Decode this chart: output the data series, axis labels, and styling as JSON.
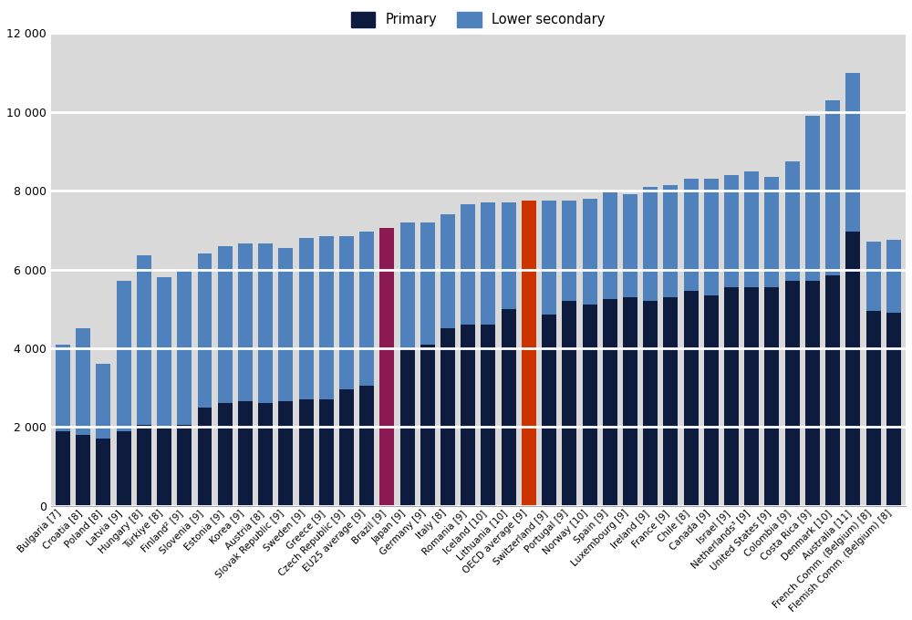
{
  "countries": [
    "Bulgaria [7]",
    "Croatia [8]",
    "Poland [8]",
    "Latvia [9]",
    "Hungary [8]",
    "Türkiye [8]",
    "Finland² [9]",
    "Slovenia [9]",
    "Estonia [9]",
    "Korea [9]",
    "Austria [8]",
    "Slovak Republic [9]",
    "Sweden [9]",
    "Greece [9]",
    "Czech Republic [9]",
    "EU25 average [9]",
    "Brazil [9]",
    "Japan [9]",
    "Germany [9]",
    "Italy [8]",
    "Romania [9]",
    "Iceland [10]",
    "Lithuania [10]",
    "OECD average [9]",
    "Switzerland [9]",
    "Portugal [9]",
    "Norway [10]",
    "Spain [9]",
    "Luxembourg [9]",
    "Ireland [9]",
    "France [9]",
    "Chile [8]",
    "Canada [9]",
    "Israel [9]",
    "Netherlands³ [9]",
    "United States [9]",
    "Colombia [9]",
    "Costa Rica [9]",
    "Denmark [10]",
    "Australia [11]",
    "French Comm. (Belgium) [8]",
    "Flemish Comm. (Belgium) [8]"
  ],
  "primary": [
    1900,
    1800,
    1700,
    1900,
    2050,
    2000,
    2050,
    2500,
    2600,
    2650,
    2600,
    2650,
    2700,
    2700,
    2950,
    3050,
    4050,
    4000,
    4100,
    4500,
    4600,
    4600,
    5000,
    5000,
    4850,
    5200,
    5100,
    5250,
    5300,
    5200,
    5300,
    5450,
    5350,
    5550,
    5550,
    5550,
    5700,
    5700,
    5850,
    6950,
    4950,
    4900
  ],
  "lower_secondary": [
    2200,
    2700,
    1900,
    3800,
    4300,
    3800,
    3950,
    3900,
    4000,
    4000,
    4050,
    3900,
    4100,
    4150,
    3900,
    3900,
    3000,
    3200,
    3100,
    2900,
    3050,
    3100,
    2700,
    2750,
    2900,
    2550,
    2700,
    2700,
    2600,
    2900,
    2850,
    2850,
    2950,
    2850,
    2950,
    2800,
    3050,
    4200,
    4450,
    4050,
    1750,
    1850
  ],
  "bar_colors_primary": [
    "#0d1b3e",
    "#0d1b3e",
    "#0d1b3e",
    "#0d1b3e",
    "#0d1b3e",
    "#0d1b3e",
    "#0d1b3e",
    "#0d1b3e",
    "#0d1b3e",
    "#0d1b3e",
    "#0d1b3e",
    "#0d1b3e",
    "#0d1b3e",
    "#0d1b3e",
    "#0d1b3e",
    "#0d1b3e",
    "#8b1a52",
    "#0d1b3e",
    "#0d1b3e",
    "#0d1b3e",
    "#0d1b3e",
    "#0d1b3e",
    "#0d1b3e",
    "#cc3300",
    "#0d1b3e",
    "#0d1b3e",
    "#0d1b3e",
    "#0d1b3e",
    "#0d1b3e",
    "#0d1b3e",
    "#0d1b3e",
    "#0d1b3e",
    "#0d1b3e",
    "#0d1b3e",
    "#0d1b3e",
    "#0d1b3e",
    "#0d1b3e",
    "#0d1b3e",
    "#0d1b3e",
    "#0d1b3e",
    "#0d1b3e",
    "#0d1b3e"
  ],
  "bar_colors_secondary": [
    "#4f81bd",
    "#4f81bd",
    "#4f81bd",
    "#4f81bd",
    "#4f81bd",
    "#4f81bd",
    "#4f81bd",
    "#4f81bd",
    "#4f81bd",
    "#4f81bd",
    "#4f81bd",
    "#4f81bd",
    "#4f81bd",
    "#4f81bd",
    "#4f81bd",
    "#4f81bd",
    "#8b1a52",
    "#4f81bd",
    "#4f81bd",
    "#4f81bd",
    "#4f81bd",
    "#4f81bd",
    "#4f81bd",
    "#cc3300",
    "#4f81bd",
    "#4f81bd",
    "#4f81bd",
    "#4f81bd",
    "#4f81bd",
    "#4f81bd",
    "#4f81bd",
    "#4f81bd",
    "#4f81bd",
    "#4f81bd",
    "#4f81bd",
    "#4f81bd",
    "#4f81bd",
    "#4f81bd",
    "#4f81bd",
    "#4f81bd",
    "#4f81bd",
    "#4f81bd"
  ],
  "ylim": [
    0,
    12000
  ],
  "yticks": [
    0,
    2000,
    4000,
    6000,
    8000,
    10000,
    12000
  ],
  "ytick_labels": [
    "0",
    "2 000",
    "4 000",
    "6 000",
    "8 000",
    "10 000",
    "12 000"
  ],
  "background_color": "#d9d9d9",
  "grid_color": "#ffffff",
  "grid_linewidth": 2.0,
  "legend_primary": "Primary",
  "legend_secondary": "Lower secondary"
}
